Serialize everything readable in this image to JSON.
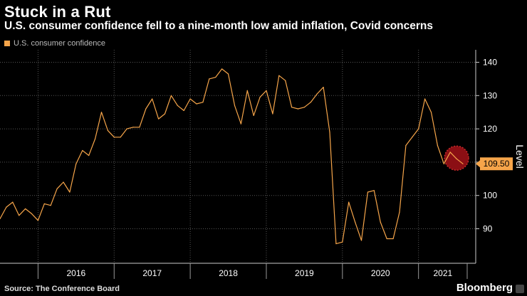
{
  "header": {
    "title": "Stuck in a Rut",
    "subtitle": "U.S. consumer confidence fell to a nine-month low amid inflation, Covid concerns"
  },
  "legend": {
    "label": "U.S. consumer confidence",
    "color": "#f6a54a"
  },
  "footer": {
    "source": "Source: The Conference Board",
    "brand": "Bloomberg"
  },
  "chart_data": {
    "type": "line",
    "title": "Stuck in a Rut",
    "ylabel": "Level",
    "xlabel": "",
    "ylim": [
      82,
      142
    ],
    "yticks": [
      90,
      100,
      110,
      120,
      130,
      140
    ],
    "x_tick_labels": [
      "2016",
      "2017",
      "2018",
      "2019",
      "2020",
      "2021"
    ],
    "x_start": "2015-07",
    "last_value_label": "109.50",
    "series": [
      {
        "name": "U.S. consumer confidence",
        "color": "#f6a54a",
        "values": [
          93,
          96.5,
          98,
          94,
          96,
          94.5,
          92.5,
          97.5,
          97,
          102,
          104,
          101,
          109.5,
          113.5,
          112,
          117,
          125,
          119.5,
          117.5,
          117.5,
          120,
          120.5,
          120.5,
          126,
          129,
          123,
          124.5,
          130,
          127,
          125.5,
          129,
          127.5,
          128,
          135,
          135.5,
          138,
          136.5,
          127,
          121.5,
          131.5,
          124,
          129.5,
          131.5,
          124.5,
          136,
          134.5,
          126.5,
          126,
          126.5,
          128,
          130.5,
          132.5,
          119,
          85.5,
          86,
          98,
          92,
          86.5,
          101,
          101.5,
          92,
          87,
          87,
          95,
          115,
          117.5,
          120,
          129,
          125,
          115,
          109.5,
          113,
          111,
          109.5
        ]
      }
    ],
    "highlight_last_points": 3
  }
}
